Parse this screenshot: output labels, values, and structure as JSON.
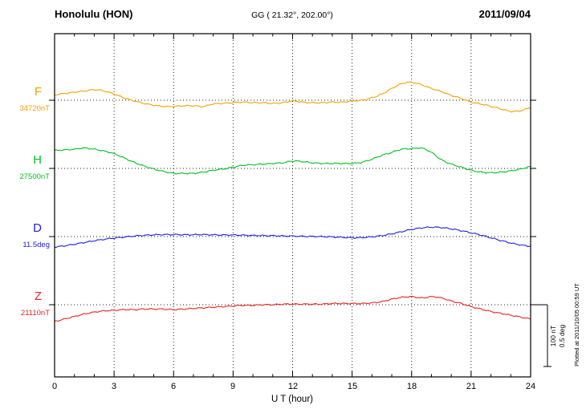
{
  "header": {
    "station": "Honolulu (HON)",
    "coords": "GG ( 21.32°, 202.00°)",
    "date": "2011/09/04"
  },
  "channels": [
    {
      "letter": "F",
      "value_label": "34720nT",
      "unit": "nT",
      "color": "#f2a200"
    },
    {
      "letter": "H",
      "value_label": "27500nT",
      "unit": "nT",
      "color": "#00c020"
    },
    {
      "letter": "D",
      "value_label": "11.5deg",
      "unit": "deg",
      "color": "#2020dd"
    },
    {
      "letter": "Z",
      "value_label": "21110nT",
      "unit": "nT",
      "color": "#ee2222"
    }
  ],
  "axis": {
    "tick_labels": [
      "0",
      "3",
      "6",
      "9",
      "12",
      "15",
      "18",
      "21",
      "24"
    ],
    "xlabel": "U T (hour)"
  },
  "scalebar": {
    "nt_label": "100 nT",
    "deg_label": "0.5 deg"
  },
  "footer": {
    "plotted_label": "Plotted at 2011/10/05 00:59 UT"
  },
  "chart_data": {
    "type": "line",
    "title": "Honolulu (HON) magnetogram 2011/09/04",
    "x_unit": "hour UT",
    "x_range": [
      0,
      24
    ],
    "x_step": 0.5,
    "x_ticks": [
      0,
      3,
      6,
      9,
      12,
      15,
      18,
      21,
      24
    ],
    "grid": "dotted vertical lines every 3 h; dotted horizontal baseline per channel",
    "legend_position": "left channel labels",
    "scale": {
      "nT_per_div": 100,
      "deg_per_div": 0.5
    },
    "series": [
      {
        "name": "F",
        "unit": "nT",
        "baseline": 34720,
        "color": "#f2a200",
        "offsets": [
          9,
          11,
          13,
          15,
          17,
          15,
          10,
          4,
          -1,
          -5,
          -8,
          -10,
          -10,
          -9,
          -9,
          -10,
          -6,
          -5,
          -4,
          -3,
          -4,
          -4,
          -5,
          -4,
          -1,
          -3,
          -4,
          -4,
          -3,
          -3,
          -1,
          0,
          4,
          10,
          19,
          27,
          29,
          25,
          19,
          14,
          8,
          3,
          -3,
          -6,
          -10,
          -14,
          -18,
          -17,
          -12
        ]
      },
      {
        "name": "H",
        "unit": "nT",
        "baseline": 27500,
        "color": "#00c020",
        "offsets": [
          29,
          30,
          31,
          33,
          31,
          28,
          24,
          17,
          10,
          4,
          -1,
          -5,
          -8,
          -8,
          -8,
          -6,
          -3,
          -1,
          2,
          5,
          6,
          7,
          8,
          9,
          12,
          11,
          9,
          8,
          8,
          8,
          8,
          10,
          15,
          21,
          26,
          31,
          32,
          33,
          26,
          14,
          7,
          2,
          -3,
          -6,
          -7,
          -6,
          -4,
          -1,
          3
        ]
      },
      {
        "name": "D",
        "unit": "deg",
        "baseline": 11.5,
        "color": "#2020dd",
        "offsets": [
          -0.084,
          -0.075,
          -0.062,
          -0.048,
          -0.034,
          -0.022,
          -0.012,
          -0.004,
          0.004,
          0.01,
          0.014,
          0.016,
          0.016,
          0.015,
          0.015,
          0.016,
          0.014,
          0.013,
          0.013,
          0.011,
          0.009,
          0.008,
          0.007,
          0.005,
          0.004,
          0.002,
          0.001,
          0.0,
          -0.003,
          -0.006,
          -0.01,
          -0.008,
          -0.002,
          0.008,
          0.022,
          0.04,
          0.058,
          0.07,
          0.076,
          0.073,
          0.062,
          0.048,
          0.03,
          0.012,
          -0.01,
          -0.032,
          -0.052,
          -0.068,
          -0.078
        ]
      },
      {
        "name": "Z",
        "unit": "nT",
        "baseline": 21110,
        "color": "#ee2222",
        "offsets": [
          -27,
          -23,
          -19,
          -15,
          -12,
          -10,
          -9,
          -8,
          -8,
          -7,
          -7,
          -7,
          -8,
          -7,
          -6,
          -5,
          -4,
          -3,
          -2,
          -1,
          -1,
          0,
          0,
          1,
          1,
          1,
          1,
          1,
          2,
          2,
          2,
          2,
          3,
          5,
          9,
          12,
          13,
          11,
          13,
          11,
          6,
          2,
          -3,
          -7,
          -11,
          -14,
          -17,
          -20,
          -23
        ]
      }
    ]
  }
}
